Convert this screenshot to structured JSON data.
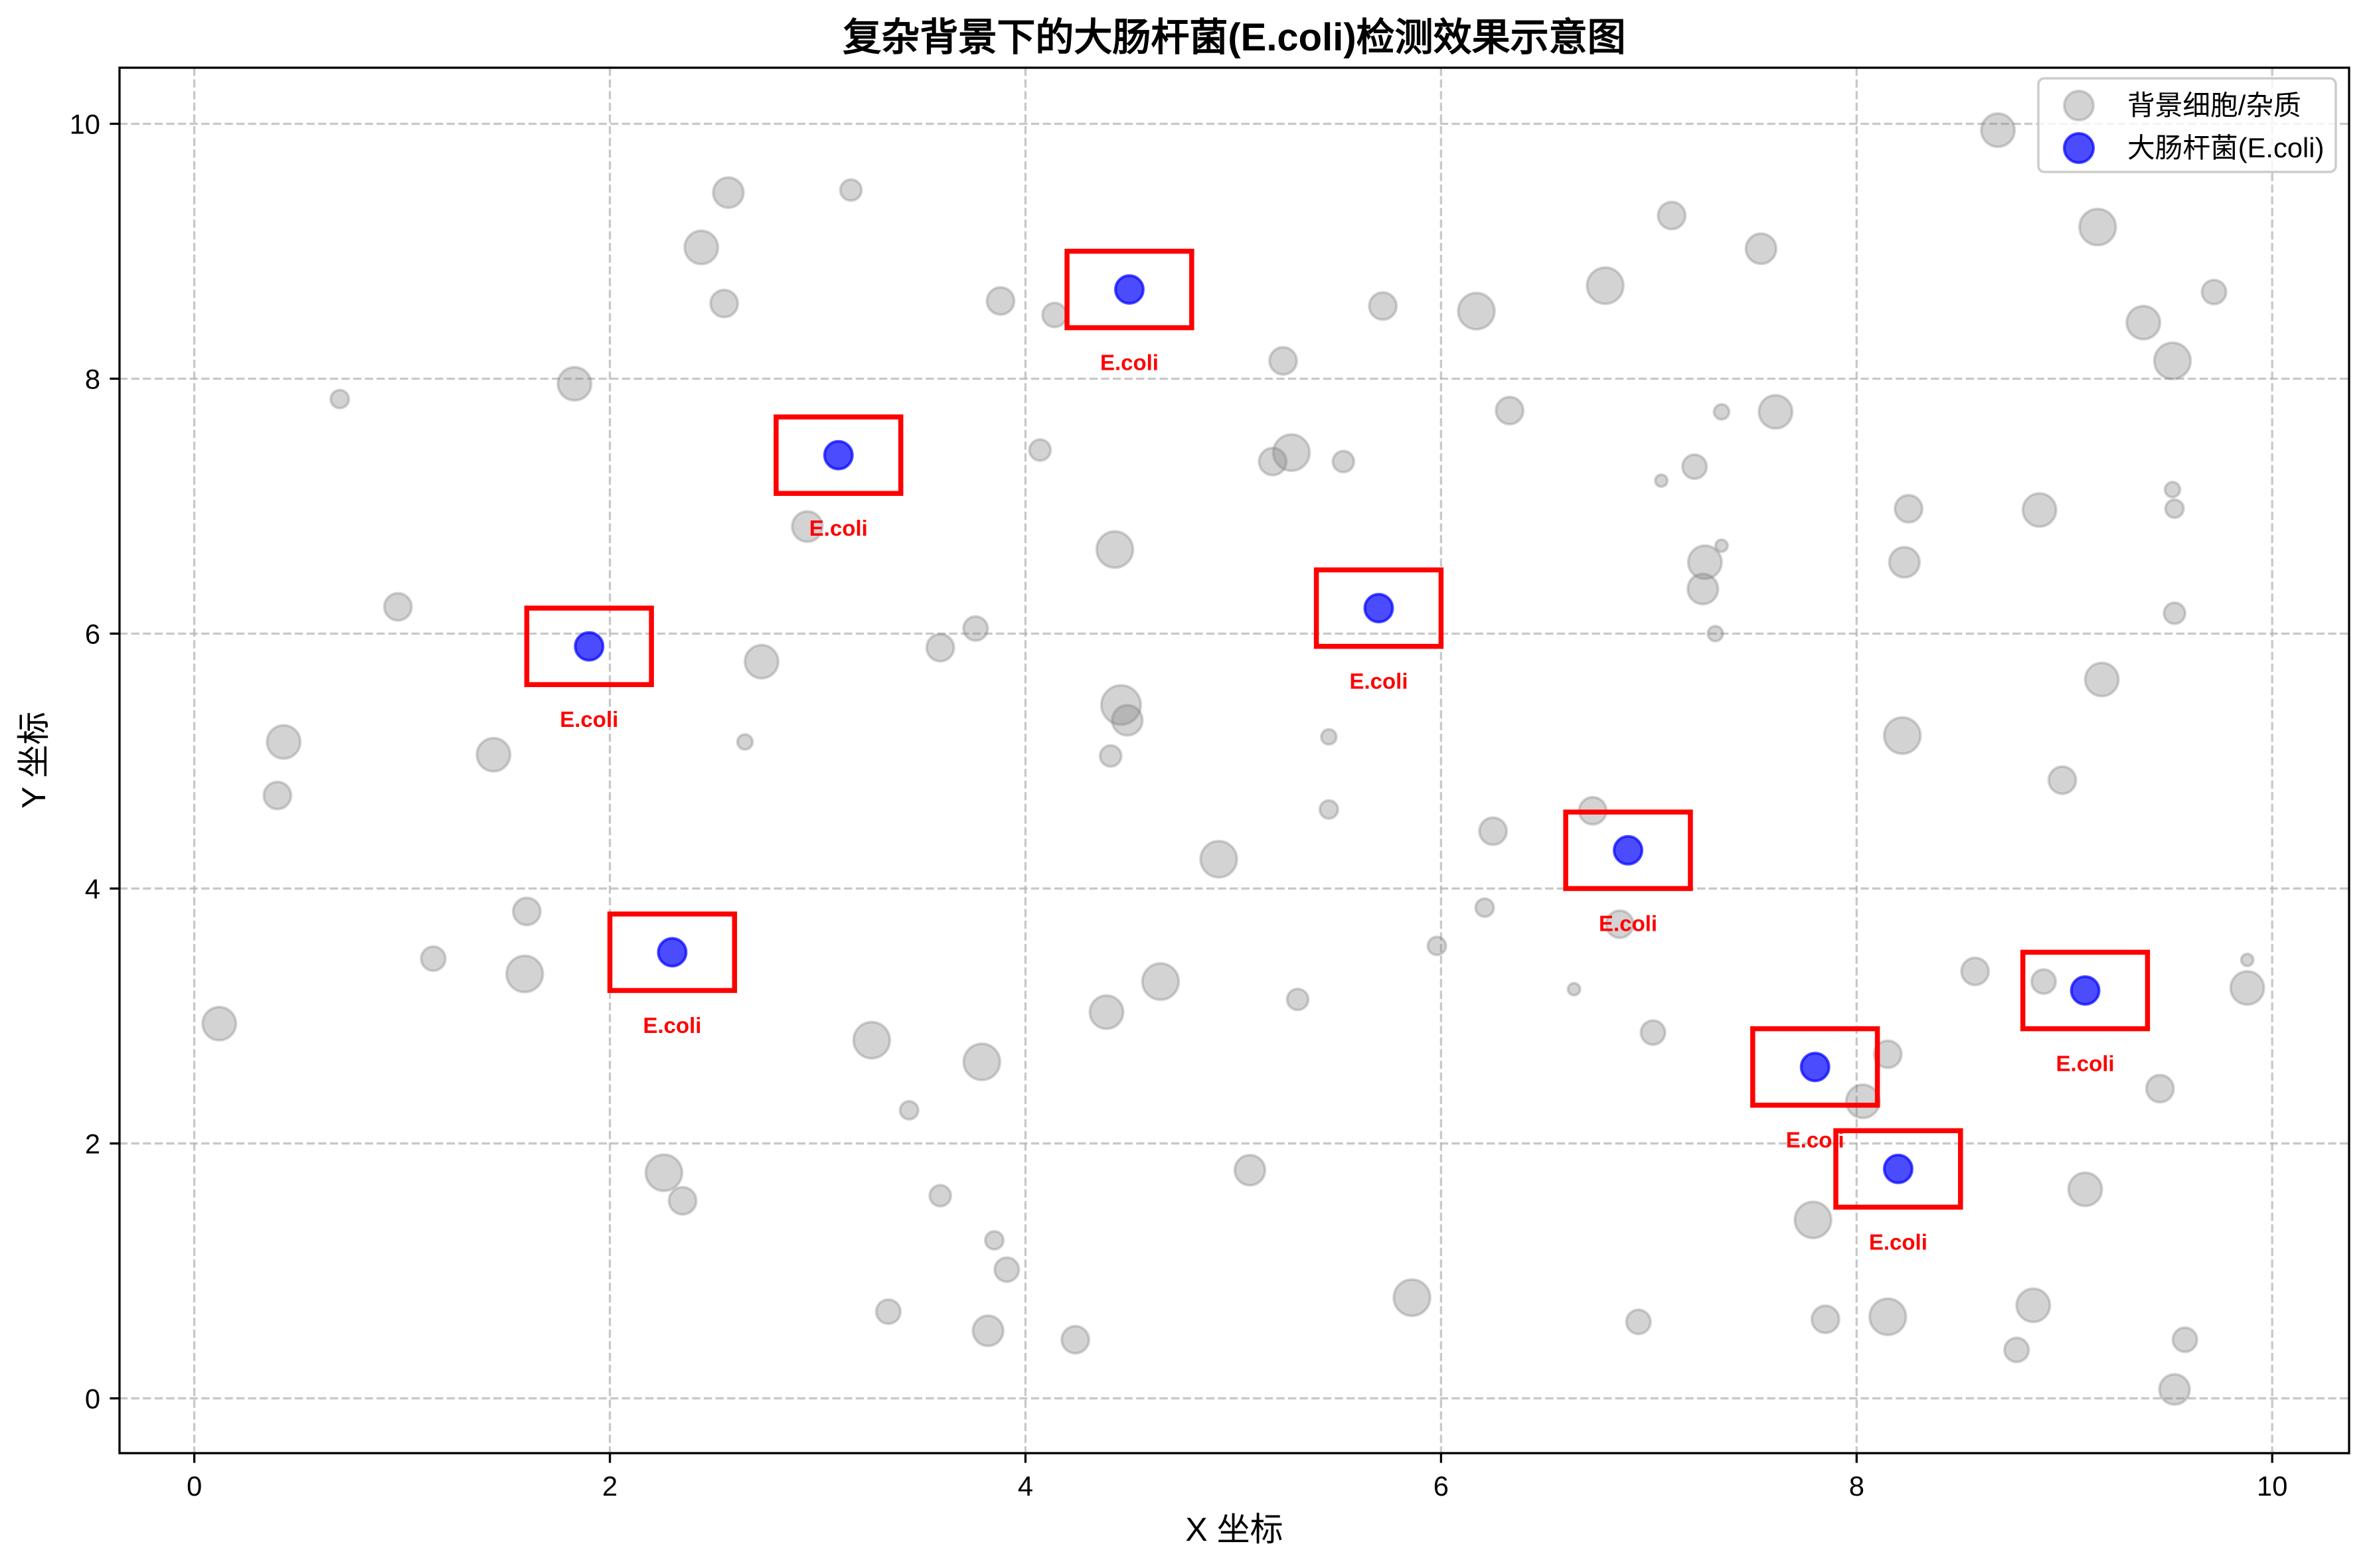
{
  "chart_data": {
    "type": "scatter",
    "title": "复杂背景下的大肠杆菌(E.coli)检测效果示意图",
    "xlabel": "X 坐标",
    "ylabel": "Y 坐标",
    "xlim": [
      -0.36,
      10.37
    ],
    "ylim": [
      -0.43,
      10.44
    ],
    "xticks": [
      0,
      2,
      4,
      6,
      8,
      10
    ],
    "xtick_labels": [
      "0",
      "2",
      "4",
      "6",
      "8",
      "10"
    ],
    "yticks": [
      0,
      2,
      4,
      6,
      8,
      10
    ],
    "ytick_labels": [
      "0",
      "2",
      "4",
      "6",
      "8",
      "10"
    ],
    "grid": true,
    "legend_position": "top-right",
    "series": [
      {
        "name": "背景细胞/杂质",
        "color": "#808080",
        "x": [
          0.12,
          0.43,
          0.4,
          0.7,
          0.98,
          1.15,
          1.44,
          1.6,
          1.59,
          1.83,
          2.26,
          2.35,
          2.44,
          2.57,
          2.55,
          2.65,
          2.73,
          2.95,
          3.16,
          3.26,
          3.34,
          3.44,
          3.59,
          3.59,
          3.76,
          3.79,
          3.82,
          3.85,
          3.88,
          3.91,
          4.07,
          4.14,
          4.24,
          4.39,
          4.41,
          4.43,
          4.46,
          4.49,
          4.65,
          4.93,
          5.08,
          5.19,
          5.24,
          5.28,
          5.31,
          5.46,
          5.46,
          5.53,
          5.72,
          5.86,
          5.98,
          6.17,
          6.21,
          6.25,
          6.33,
          6.64,
          6.73,
          6.79,
          6.86,
          6.95,
          7.02,
          7.06,
          7.11,
          7.22,
          7.27,
          7.26,
          7.32,
          7.35,
          7.35,
          7.54,
          7.61,
          7.79,
          7.85,
          8.03,
          8.15,
          8.15,
          8.22,
          8.23,
          8.25,
          8.57,
          8.68,
          8.77,
          8.85,
          8.88,
          8.9,
          8.99,
          9.1,
          9.16,
          9.18,
          9.38,
          9.46,
          9.52,
          9.53,
          9.52,
          9.53,
          9.53,
          9.58,
          9.72,
          9.88,
          9.88
        ],
        "y": [
          2.94,
          5.15,
          4.73,
          7.84,
          6.21,
          3.45,
          5.05,
          3.82,
          3.33,
          7.96,
          1.77,
          1.55,
          9.03,
          9.46,
          8.59,
          5.15,
          5.78,
          6.84,
          9.48,
          2.81,
          0.68,
          2.26,
          1.59,
          5.89,
          6.04,
          2.64,
          0.53,
          1.24,
          8.61,
          1.01,
          7.44,
          8.5,
          0.46,
          3.03,
          5.04,
          6.66,
          5.44,
          5.32,
          3.27,
          4.23,
          1.79,
          7.35,
          8.14,
          7.42,
          3.13,
          5.19,
          4.62,
          7.35,
          8.57,
          0.79,
          3.55,
          8.53,
          3.85,
          4.45,
          7.75,
          3.21,
          4.61,
          8.73,
          3.72,
          0.6,
          2.87,
          7.2,
          9.28,
          7.31,
          6.56,
          6.35,
          6.0,
          7.74,
          6.69,
          9.02,
          7.74,
          1.4,
          0.62,
          2.33,
          2.7,
          0.64,
          5.2,
          6.56,
          6.98,
          3.35,
          9.95,
          0.38,
          0.73,
          6.97,
          3.27,
          4.85,
          1.64,
          9.19,
          5.64,
          8.44,
          2.43,
          7.13,
          6.98,
          8.14,
          6.16,
          0.07,
          0.46,
          8.68,
          3.44,
          3.22
        ]
      },
      {
        "name": "大肠杆菌(E.coli)",
        "color": "#0000ff",
        "x": [
          4.5,
          3.1,
          1.9,
          5.7,
          2.3,
          6.9,
          9.1,
          7.8,
          8.2
        ],
        "y": [
          8.7,
          7.4,
          5.9,
          6.2,
          3.5,
          4.3,
          3.2,
          2.6,
          1.8
        ]
      }
    ],
    "annotation_label": "E.coli",
    "annotation_color": "#ff0000"
  }
}
